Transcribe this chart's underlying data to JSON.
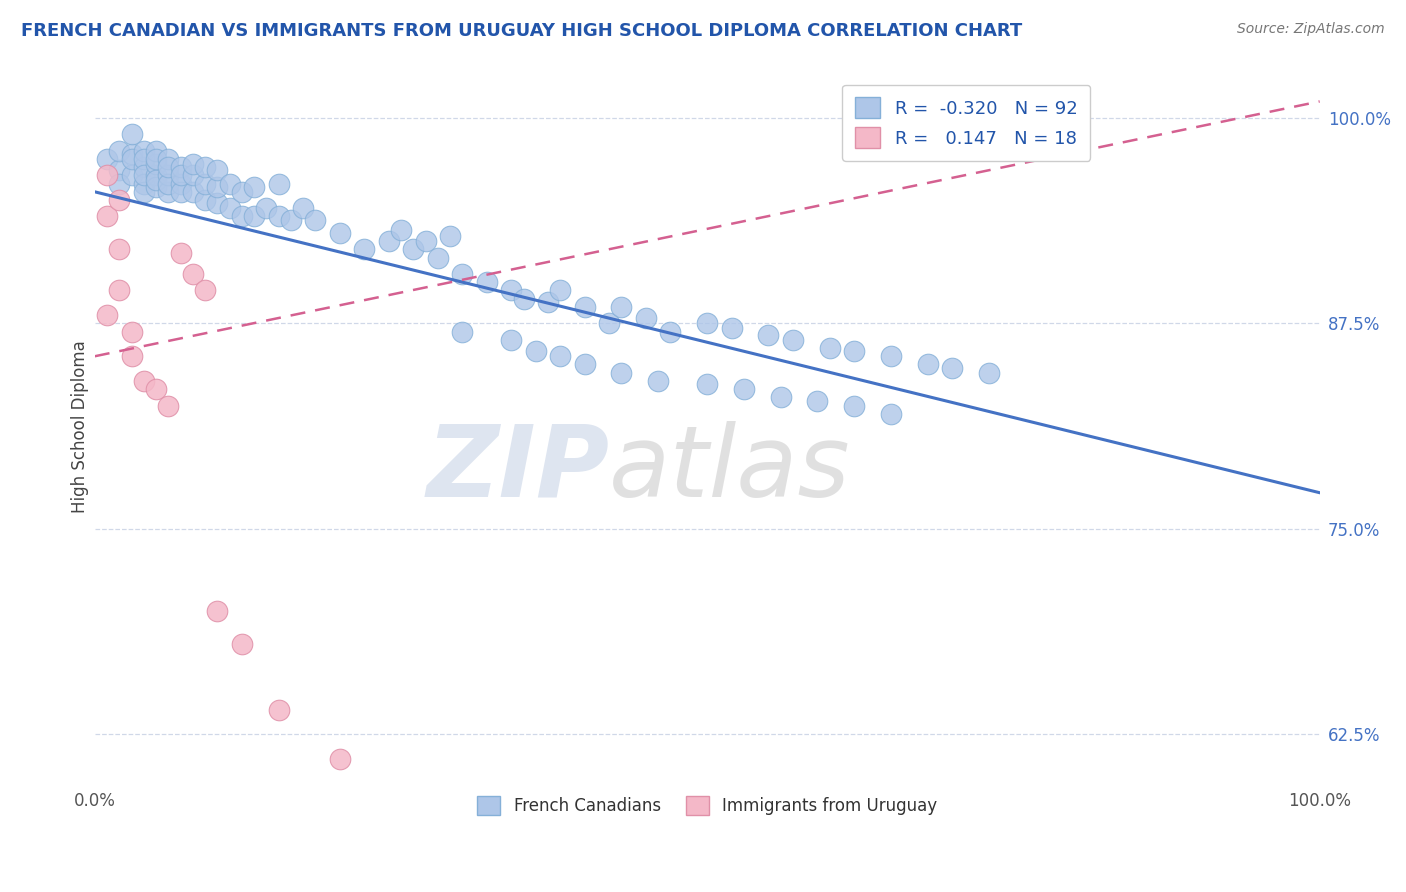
{
  "title": "FRENCH CANADIAN VS IMMIGRANTS FROM URUGUAY HIGH SCHOOL DIPLOMA CORRELATION CHART",
  "source": "Source: ZipAtlas.com",
  "ylabel": "High School Diploma",
  "xlim": [
    0.0,
    1.0
  ],
  "ylim": [
    0.595,
    1.03
  ],
  "yticks": [
    0.625,
    0.75,
    0.875,
    1.0
  ],
  "ytick_labels": [
    "62.5%",
    "75.0%",
    "87.5%",
    "100.0%"
  ],
  "xticks": [
    0.0,
    1.0
  ],
  "xtick_labels": [
    "0.0%",
    "100.0%"
  ],
  "blue_R": -0.32,
  "blue_N": 92,
  "pink_R": 0.147,
  "pink_N": 18,
  "blue_color": "#aec6e8",
  "pink_color": "#f4b8c8",
  "blue_line_color": "#4472c4",
  "pink_line_color": "#d46090",
  "watermark_zip": "ZIP",
  "watermark_atlas": "atlas",
  "background_color": "#ffffff",
  "grid_color": "#d0d8e8",
  "blue_line_x0": 0.0,
  "blue_line_y0": 0.955,
  "blue_line_x1": 1.0,
  "blue_line_y1": 0.772,
  "pink_line_x0": 0.0,
  "pink_line_y0": 0.855,
  "pink_line_x1": 1.0,
  "pink_line_y1": 1.01,
  "blue_scatter_x": [
    0.01,
    0.02,
    0.02,
    0.02,
    0.03,
    0.03,
    0.03,
    0.03,
    0.04,
    0.04,
    0.04,
    0.04,
    0.04,
    0.04,
    0.05,
    0.05,
    0.05,
    0.05,
    0.05,
    0.05,
    0.06,
    0.06,
    0.06,
    0.06,
    0.06,
    0.07,
    0.07,
    0.07,
    0.07,
    0.08,
    0.08,
    0.08,
    0.09,
    0.09,
    0.09,
    0.1,
    0.1,
    0.1,
    0.11,
    0.11,
    0.12,
    0.12,
    0.13,
    0.13,
    0.14,
    0.15,
    0.15,
    0.16,
    0.17,
    0.18,
    0.2,
    0.22,
    0.24,
    0.25,
    0.26,
    0.27,
    0.28,
    0.29,
    0.3,
    0.32,
    0.34,
    0.35,
    0.37,
    0.38,
    0.4,
    0.42,
    0.43,
    0.45,
    0.47,
    0.5,
    0.52,
    0.55,
    0.57,
    0.6,
    0.62,
    0.65,
    0.68,
    0.7,
    0.73,
    0.3,
    0.34,
    0.36,
    0.38,
    0.4,
    0.43,
    0.46,
    0.5,
    0.53,
    0.56,
    0.59,
    0.62,
    0.65
  ],
  "blue_scatter_y": [
    0.975,
    0.968,
    0.96,
    0.98,
    0.978,
    0.965,
    0.975,
    0.99,
    0.97,
    0.96,
    0.98,
    0.955,
    0.975,
    0.965,
    0.965,
    0.972,
    0.958,
    0.98,
    0.962,
    0.975,
    0.955,
    0.965,
    0.975,
    0.96,
    0.97,
    0.96,
    0.97,
    0.955,
    0.965,
    0.955,
    0.965,
    0.972,
    0.95,
    0.96,
    0.97,
    0.948,
    0.958,
    0.968,
    0.945,
    0.96,
    0.94,
    0.955,
    0.94,
    0.958,
    0.945,
    0.94,
    0.96,
    0.938,
    0.945,
    0.938,
    0.93,
    0.92,
    0.925,
    0.932,
    0.92,
    0.925,
    0.915,
    0.928,
    0.905,
    0.9,
    0.895,
    0.89,
    0.888,
    0.895,
    0.885,
    0.875,
    0.885,
    0.878,
    0.87,
    0.875,
    0.872,
    0.868,
    0.865,
    0.86,
    0.858,
    0.855,
    0.85,
    0.848,
    0.845,
    0.87,
    0.865,
    0.858,
    0.855,
    0.85,
    0.845,
    0.84,
    0.838,
    0.835,
    0.83,
    0.828,
    0.825,
    0.82
  ],
  "pink_scatter_x": [
    0.01,
    0.01,
    0.01,
    0.02,
    0.02,
    0.02,
    0.03,
    0.03,
    0.04,
    0.05,
    0.06,
    0.07,
    0.08,
    0.09,
    0.1,
    0.12,
    0.15,
    0.2
  ],
  "pink_scatter_y": [
    0.965,
    0.94,
    0.88,
    0.95,
    0.92,
    0.895,
    0.87,
    0.855,
    0.84,
    0.835,
    0.825,
    0.918,
    0.905,
    0.895,
    0.7,
    0.68,
    0.64,
    0.61
  ]
}
